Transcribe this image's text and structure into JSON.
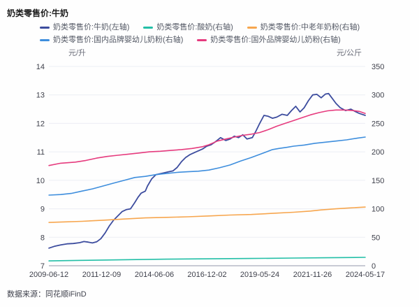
{
  "title": "奶类零售价:牛奶",
  "source": "数据来源：同花顺iFinD",
  "axes": {
    "left_unit": "元/升",
    "right_unit": "元/公斤",
    "left_ticks": [
      14,
      13,
      12,
      11,
      10,
      9,
      8,
      7
    ],
    "right_ticks": [
      350,
      300,
      250,
      200,
      150,
      100,
      50,
      0
    ],
    "x_ticks": [
      "2009-06-12",
      "2011-12-09",
      "2014-06-06",
      "2016-12-02",
      "2019-05-24",
      "2021-11-26",
      "2024-05-17"
    ]
  },
  "colors": {
    "grid": "#ecedf4",
    "axis_line": "#a8acba",
    "tick_text": "#3d3f4a"
  },
  "chart_data": {
    "type": "line",
    "title": "奶类零售价:牛奶",
    "x_label": "",
    "x_domain_years": [
      2009.446,
      2024.38
    ],
    "x_tick_labels": [
      "2009-06-12",
      "2011-12-09",
      "2014-06-06",
      "2016-12-02",
      "2019-05-24",
      "2021-11-26",
      "2024-05-17"
    ],
    "y_left": {
      "unit": "元/升",
      "range": [
        7,
        14
      ],
      "ticks": [
        14,
        13,
        12,
        11,
        10,
        9,
        8,
        7
      ]
    },
    "y_right": {
      "unit": "元/公斤",
      "range": [
        0,
        350
      ],
      "ticks": [
        350,
        300,
        250,
        200,
        150,
        100,
        50,
        0
      ]
    },
    "grid": true,
    "legend_position": "top",
    "series": [
      {
        "name": "奶类零售价:牛奶(左轴)",
        "key": "milk",
        "axis": "left",
        "color": "#3C4C9E",
        "x": [
          2009.45,
          2009.7,
          2010.0,
          2010.3,
          2010.6,
          2010.9,
          2011.1,
          2011.3,
          2011.5,
          2011.7,
          2011.9,
          2012.1,
          2012.3,
          2012.5,
          2012.7,
          2012.9,
          2013.1,
          2013.3,
          2013.5,
          2013.65,
          2013.8,
          2014.0,
          2014.1,
          2014.3,
          2014.5,
          2014.8,
          2015.1,
          2015.3,
          2015.5,
          2015.7,
          2015.9,
          2016.1,
          2016.4,
          2016.7,
          2016.9,
          2017.1,
          2017.3,
          2017.55,
          2017.8,
          2018.0,
          2018.2,
          2018.4,
          2018.6,
          2018.8,
          2019.05,
          2019.2,
          2019.4,
          2019.6,
          2019.8,
          2020.0,
          2020.2,
          2020.45,
          2020.7,
          2020.9,
          2021.1,
          2021.3,
          2021.5,
          2021.7,
          2021.9,
          2022.1,
          2022.3,
          2022.5,
          2022.65,
          2022.8,
          2023.0,
          2023.2,
          2023.45,
          2023.7,
          2023.9,
          2024.1,
          2024.38
        ],
        "values": [
          7.62,
          7.68,
          7.73,
          7.77,
          7.78,
          7.81,
          7.85,
          7.83,
          7.8,
          7.84,
          7.95,
          8.15,
          8.4,
          8.6,
          8.75,
          8.9,
          8.97,
          9.0,
          9.22,
          9.4,
          9.55,
          9.62,
          9.8,
          10.05,
          10.2,
          10.25,
          10.3,
          10.33,
          10.45,
          10.65,
          10.8,
          10.9,
          11.0,
          11.1,
          11.2,
          11.25,
          11.35,
          11.5,
          11.4,
          11.45,
          11.55,
          11.5,
          11.6,
          11.45,
          11.5,
          11.7,
          12.0,
          12.28,
          12.25,
          12.18,
          12.22,
          12.32,
          12.28,
          12.45,
          12.6,
          12.4,
          12.55,
          12.8,
          13.0,
          13.02,
          12.9,
          13.03,
          13.05,
          12.9,
          12.7,
          12.55,
          12.45,
          12.5,
          12.42,
          12.35,
          12.28
        ]
      },
      {
        "name": "奶类零售价:酸奶(右轴)",
        "key": "yogurt",
        "axis": "right",
        "color": "#23BFA7",
        "x": [
          2009.45,
          2011.0,
          2013.0,
          2015.0,
          2017.0,
          2019.0,
          2021.0,
          2022.5,
          2024.38
        ],
        "values": [
          8.5,
          9.5,
          10.5,
          11.5,
          12.2,
          12.8,
          13.5,
          14.0,
          14.7
        ]
      },
      {
        "name": "奶类零售价:中老年奶粉(右轴)",
        "key": "middle-aged-milk-powder",
        "axis": "right",
        "color": "#F7A64E",
        "x": [
          2009.45,
          2010.2,
          2011.0,
          2012.0,
          2013.0,
          2014.0,
          2015.0,
          2016.0,
          2017.0,
          2018.0,
          2019.0,
          2020.0,
          2021.0,
          2021.8,
          2022.3,
          2023.0,
          2023.6,
          2024.38
        ],
        "values": [
          76,
          77,
          78,
          80,
          82,
          84,
          85,
          86,
          87.5,
          89,
          90,
          92,
          94,
          96,
          98,
          100,
          101.5,
          103
        ]
      },
      {
        "name": "奶类零售价:国内品牌婴幼儿奶粉(右轴)",
        "key": "domestic-infant-formula",
        "axis": "right",
        "color": "#3E8EDD",
        "x": [
          2009.45,
          2010.0,
          2010.5,
          2011.0,
          2011.5,
          2012.0,
          2012.5,
          2013.0,
          2013.5,
          2014.0,
          2014.5,
          2015.0,
          2015.5,
          2016.0,
          2016.5,
          2017.0,
          2017.5,
          2018.0,
          2018.5,
          2019.0,
          2019.5,
          2020.0,
          2020.3,
          2020.7,
          2021.0,
          2021.5,
          2022.0,
          2022.5,
          2023.0,
          2023.5,
          2024.0,
          2024.38
        ],
        "values": [
          124,
          125,
          127,
          131,
          135,
          140,
          145,
          150,
          155,
          157,
          160,
          162,
          164,
          165,
          166,
          168,
          172,
          177,
          184,
          190,
          197,
          204,
          206,
          208,
          210,
          212,
          215,
          217,
          219,
          221,
          224,
          226
        ]
      },
      {
        "name": "奶类零售价:国外品牌婴幼儿奶粉(右轴)",
        "key": "foreign-infant-formula",
        "axis": "right",
        "color": "#E63B7E",
        "x": [
          2009.45,
          2010.0,
          2010.7,
          2011.2,
          2011.7,
          2012.2,
          2012.7,
          2013.2,
          2013.7,
          2014.2,
          2014.7,
          2015.2,
          2015.7,
          2016.2,
          2016.7,
          2017.0,
          2017.4,
          2017.8,
          2018.2,
          2018.6,
          2019.0,
          2019.4,
          2019.8,
          2020.2,
          2020.6,
          2021.0,
          2021.4,
          2021.8,
          2022.2,
          2022.6,
          2023.0,
          2023.4,
          2023.8,
          2024.1,
          2024.38
        ],
        "values": [
          176,
          180,
          182,
          185,
          189,
          192,
          194,
          196,
          198,
          200,
          201,
          202.5,
          204,
          206,
          209,
          212.5,
          219,
          222.5,
          226,
          229,
          231,
          234,
          239,
          245,
          250,
          255,
          260,
          265,
          269,
          272,
          273.5,
          273.5,
          272.5,
          271,
          267.5
        ]
      }
    ]
  }
}
